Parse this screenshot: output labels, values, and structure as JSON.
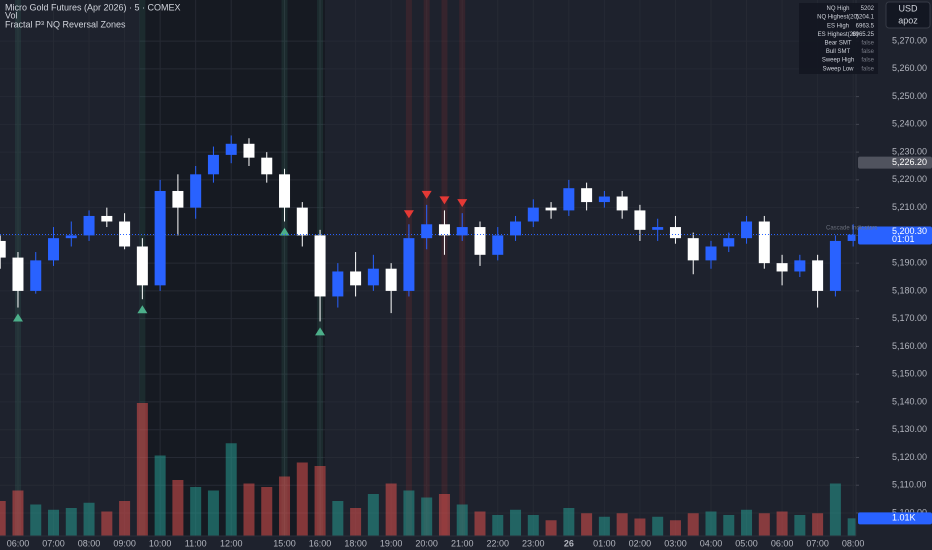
{
  "chart_data": {
    "type": "candlestick",
    "title": "Micro Gold Futures (Apr 2026) · 5 · COMEX",
    "volume_title": "Vol",
    "indicator_title": "Fractal P³ NQ Reversal Zones",
    "currency": "USD",
    "user": "apoz",
    "indicator_tag": "Cascade Indicators",
    "categories": [
      null,
      "06:00",
      null,
      "07:00",
      null,
      "08:00",
      null,
      "09:00",
      null,
      "10:00",
      null,
      "11:00",
      null,
      "12:00",
      null,
      null,
      "15:00",
      null,
      "16:00",
      null,
      "18:00",
      null,
      "19:00",
      null,
      "20:00",
      null,
      "21:00",
      null,
      "22:00",
      null,
      "23:00",
      null,
      "26",
      null,
      "01:00",
      null,
      "02:00",
      null,
      "03:00",
      null,
      "04:00",
      null,
      "05:00",
      null,
      "06:00",
      null,
      "07:00",
      null,
      "08:00"
    ],
    "open": [
      5198,
      5192,
      5180,
      5191,
      5199,
      5200,
      5207,
      5205,
      5196,
      5182,
      5216,
      5210,
      5222,
      5229,
      5233,
      5228,
      5222,
      5210,
      5200,
      5178,
      5187,
      5182,
      5188,
      5180,
      5199,
      5204,
      5200,
      5203,
      5193,
      5200,
      5205,
      5210,
      5209,
      5217,
      5212,
      5214,
      5209,
      5202,
      5203,
      5199,
      5191,
      5196,
      5199,
      5205,
      5190,
      5187,
      5191,
      5180,
      5198
    ],
    "high": [
      5200,
      5194,
      5194,
      5203,
      5205,
      5209,
      5210,
      5208,
      5199,
      5220,
      5222,
      5225,
      5232,
      5236,
      5235,
      5230,
      5224,
      5212,
      5202,
      5190,
      5194,
      5193,
      5190,
      5204,
      5211,
      5209,
      5208,
      5205,
      5203,
      5207,
      5213,
      5212,
      5220,
      5219,
      5216,
      5216,
      5211,
      5206,
      5207,
      5201,
      5198,
      5201,
      5207,
      5207,
      5193,
      5193,
      5193,
      5200,
      5204
    ],
    "low": [
      5188,
      5174,
      5179,
      5189,
      5196,
      5198,
      5203,
      5195,
      5177,
      5180,
      5200,
      5206,
      5219,
      5226,
      5225,
      5219,
      5205,
      5196,
      5169,
      5174,
      5178,
      5180,
      5172,
      5178,
      5195,
      5193,
      5198,
      5189,
      5191,
      5198,
      5203,
      5206,
      5207,
      5209,
      5210,
      5206,
      5198,
      5198,
      5197,
      5186,
      5188,
      5194,
      5197,
      5188,
      5182,
      5185,
      5174,
      5178,
      5196
    ],
    "close": [
      5192,
      5180,
      5191,
      5199,
      5200,
      5207,
      5205,
      5196,
      5182,
      5216,
      5210,
      5222,
      5229,
      5233,
      5228,
      5222,
      5210,
      5200,
      5178,
      5187,
      5182,
      5188,
      5180,
      5199,
      5204,
      5200,
      5203,
      5193,
      5200,
      5205,
      5210,
      5209,
      5217,
      5212,
      5214,
      5209,
      5202,
      5203,
      5199,
      5191,
      5196,
      5199,
      5205,
      5190,
      5187,
      5191,
      5180,
      5198,
      5200.3
    ],
    "volume": [
      2000,
      2600,
      1800,
      1500,
      1600,
      1900,
      1400,
      2000,
      7600,
      4600,
      3200,
      2800,
      2600,
      5300,
      3000,
      2800,
      3400,
      4200,
      4000,
      2000,
      1600,
      2400,
      3000,
      2600,
      2200,
      2400,
      1800,
      1400,
      1200,
      1500,
      1200,
      900,
      1600,
      1300,
      1100,
      1300,
      1000,
      1100,
      900,
      1300,
      1400,
      1200,
      1500,
      1300,
      1400,
      1200,
      1300,
      3000,
      1010
    ],
    "up_color": "#2962ff",
    "down_color": "#ffffff",
    "volume_up_color": "#26a69a",
    "volume_down_color": "#ef5350",
    "ylim": [
      5091.7,
      5284.8
    ],
    "volume_lim": [
      0,
      8000
    ],
    "yticks": [
      {
        "value": 5100,
        "label": "5,100.00"
      },
      {
        "value": 5110,
        "label": "5,110.00"
      },
      {
        "value": 5120,
        "label": "5,120.00"
      },
      {
        "value": 5130,
        "label": "5,130.00"
      },
      {
        "value": 5140,
        "label": "5,140.00"
      },
      {
        "value": 5150,
        "label": "5,150.00"
      },
      {
        "value": 5160,
        "label": "5,160.00"
      },
      {
        "value": 5170,
        "label": "5,170.00"
      },
      {
        "value": 5180,
        "label": "5,180.00"
      },
      {
        "value": 5190,
        "label": "5,190.00"
      },
      {
        "value": 5200,
        "label": "5,200.00"
      },
      {
        "value": 5210,
        "label": "5,210.00"
      },
      {
        "value": 5220,
        "label": "5,220.00"
      },
      {
        "value": 5230,
        "label": "5,230.00"
      },
      {
        "value": 5240,
        "label": "5,240.00"
      },
      {
        "value": 5250,
        "label": "5,250.00"
      },
      {
        "value": 5260,
        "label": "5,260.00"
      },
      {
        "value": 5270,
        "label": "5,270.00"
      }
    ],
    "grid": true,
    "last_price_label": "5,200.30",
    "countdown": "01:01",
    "last_volume_label": "1.01K",
    "price_markers": [
      {
        "value": 5226.2,
        "label": "5,226.20"
      }
    ],
    "bull_signals": [
      1,
      8,
      16,
      18
    ],
    "bear_signals": [
      23,
      24,
      25,
      26
    ],
    "bull_signal_color": "#4caf8a",
    "bear_signal_color": "#e53935",
    "info_table": [
      [
        "NQ High",
        "5202"
      ],
      [
        "NQ Highest(20)",
        "5204.1"
      ],
      [
        "ES High",
        "6963.5"
      ],
      [
        "ES Highest(20)",
        "6965.25"
      ],
      [
        "Bear SMT",
        "false"
      ],
      [
        "Bull SMT",
        "false"
      ],
      [
        "Sweep High",
        "false"
      ],
      [
        "Sweep Low",
        "false"
      ]
    ]
  }
}
